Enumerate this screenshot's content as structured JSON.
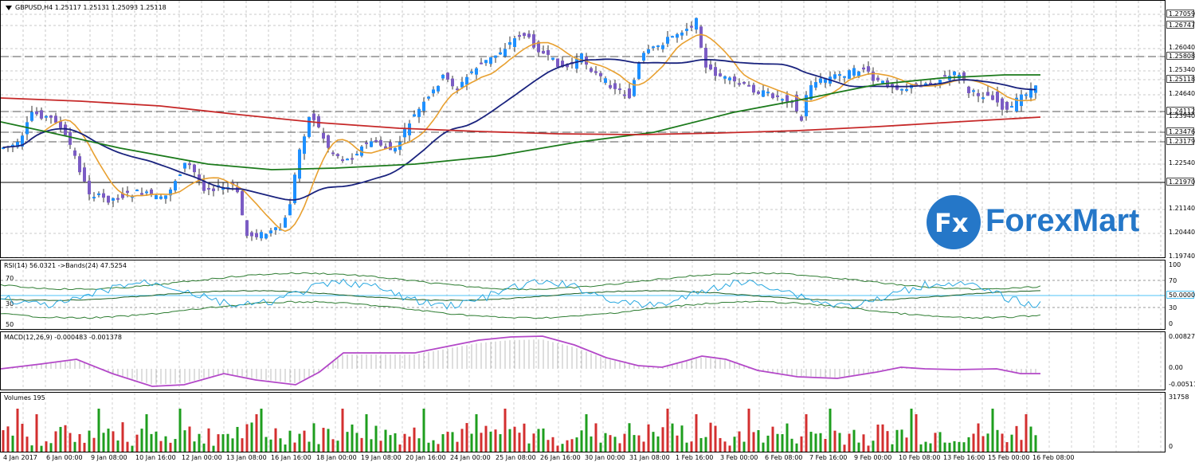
{
  "main": {
    "title": "GBPUSD,H4  1.25117 1.25131 1.25093 1.25118",
    "price_axis": [
      "1.27059",
      "1.26747",
      "1.26040",
      "1.25808",
      "1.25340",
      "1.25118",
      "1.24640",
      "1.24112",
      "1.23940",
      "1.23476",
      "1.23179",
      "1.22540",
      "1.21970",
      "1.21140",
      "1.20440",
      "1.19740"
    ],
    "tags": [
      "1.27059",
      "1.26747",
      "1.25808",
      "1.25118",
      "1.24112",
      "1.23476",
      "1.23179",
      "1.21970"
    ],
    "current_price": "1.25118"
  },
  "rsi": {
    "title": "RSI(14) 56.0321  ->Bands(24) 47.5254",
    "levels_left": [
      "70",
      "30",
      "50"
    ],
    "axis": [
      "100",
      "70",
      "50",
      "30",
      "0"
    ],
    "tag": "50.0000"
  },
  "macd": {
    "title": "MACD(12,26,9) -0.000483 -0.001378",
    "axis": [
      "0.008274",
      "0.00",
      "-0.005115"
    ]
  },
  "volumes": {
    "title": "Volumes 195",
    "axis": [
      "31758",
      "0"
    ]
  },
  "time_axis": [
    "4 Jan 2017",
    "6 Jan 00:00",
    "9 Jan 08:00",
    "10 Jan 16:00",
    "12 Jan 00:00",
    "13 Jan 08:00",
    "16 Jan 16:00",
    "18 Jan 00:00",
    "19 Jan 08:00",
    "20 Jan 16:00",
    "24 Jan 00:00",
    "25 Jan 08:00",
    "26 Jan 16:00",
    "30 Jan 00:00",
    "31 Jan 08:00",
    "1 Feb 16:00",
    "3 Feb 00:00",
    "6 Feb 08:00",
    "7 Feb 16:00",
    "9 Feb 00:00",
    "10 Feb 08:00",
    "13 Feb 16:00",
    "15 Feb 00:00",
    "16 Feb 08:00"
  ],
  "logo": {
    "mark": "Fx",
    "name": "ForexMart"
  },
  "colors": {
    "bull": "#1e90ff",
    "bear": "#7b5cc4",
    "ma_fast": "#e8a030",
    "ma_mid": "#1a237e",
    "ma_slow": "#1b7a1b",
    "ma_long": "#c62828",
    "macd": "#b348c8",
    "vol_up": "#1e9e1e",
    "vol_down": "#d32f2f"
  }
}
